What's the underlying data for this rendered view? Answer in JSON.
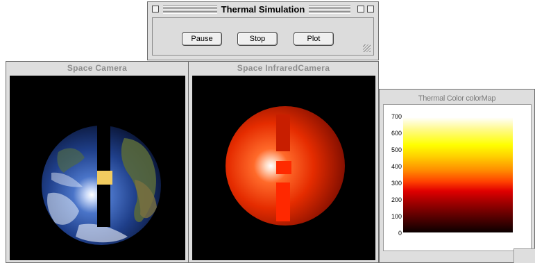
{
  "control_window": {
    "title": "Thermal Simulation",
    "buttons": {
      "pause": "Pause",
      "stop": "Stop",
      "plot": "Plot"
    }
  },
  "space_camera": {
    "title": "Space Camera"
  },
  "infrared_camera": {
    "title": "Space InfraredCamera"
  },
  "color_map": {
    "title": "Thermal Color colorMap",
    "ticks": [
      "700",
      "600",
      "500",
      "400",
      "300",
      "200",
      "100",
      "0"
    ]
  },
  "colors": {
    "window_bg": "#dedede",
    "viewport_bg": "#000000",
    "sphere_red": "#e82a00"
  }
}
